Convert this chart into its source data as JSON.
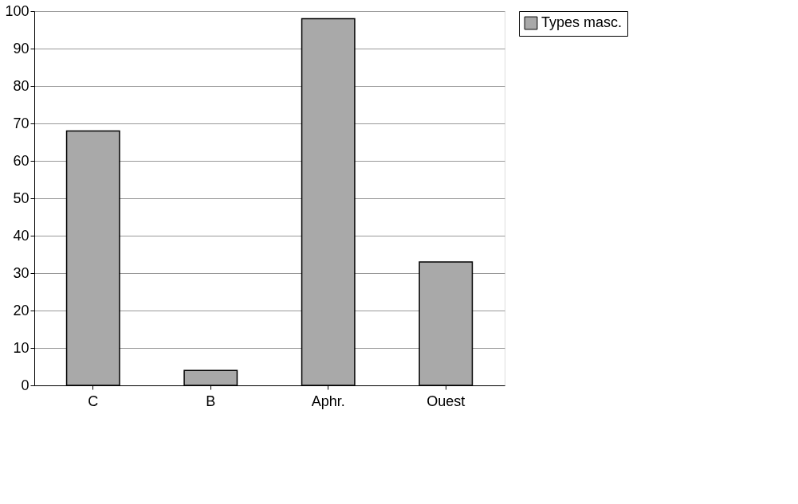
{
  "chart_data": {
    "type": "bar",
    "categories": [
      "C",
      "B",
      "Aphr.",
      "Ouest"
    ],
    "series": [
      {
        "name": "Types masc.",
        "color": "#a9a9a9",
        "values": [
          68,
          4,
          98,
          33
        ]
      }
    ],
    "ylim": [
      0,
      100
    ],
    "yticks": [
      0,
      10,
      20,
      30,
      40,
      50,
      60,
      70,
      80,
      90,
      100
    ],
    "grid": "y",
    "legend": "top right"
  }
}
